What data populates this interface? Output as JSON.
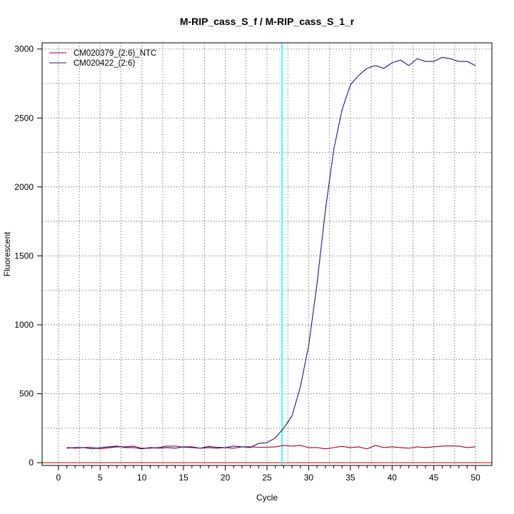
{
  "chart_data": {
    "type": "line",
    "title": "M-RIP_cass_S_f / M-RIP_cass_S_1_r",
    "xlabel": "Cycle",
    "ylabel": "Fluorescent",
    "xlim": [
      -1.96,
      51.96
    ],
    "ylim": [
      -20,
      3045
    ],
    "x_ticks": [
      0,
      5,
      10,
      15,
      20,
      25,
      30,
      35,
      40,
      45,
      50
    ],
    "x_tick_labels": [
      "0",
      "5",
      "10",
      "15",
      "20",
      "25",
      "30",
      "35",
      "40",
      "45",
      "50"
    ],
    "y_ticks": [
      0,
      500,
      1000,
      1500,
      2000,
      2500,
      3000
    ],
    "y_tick_labels": [
      "0",
      "500",
      "1000",
      "1500",
      "2000",
      "2500",
      "3000"
    ],
    "x_minor_ticks": [
      1,
      2,
      3,
      4,
      6,
      7,
      8,
      9,
      11,
      12,
      13,
      14,
      16,
      17,
      18,
      19,
      21,
      22,
      23,
      24,
      26,
      27,
      28,
      29,
      31,
      32,
      33,
      34,
      36,
      37,
      38,
      39,
      41,
      42,
      43,
      44,
      46,
      47,
      48,
      49
    ],
    "x_grid": [
      2.5,
      7.5,
      12.5,
      17.5,
      22.5,
      27.5,
      32.5,
      37.5,
      42.5,
      47.5
    ],
    "y_grid": [
      250,
      500,
      750,
      1000,
      1250,
      1500,
      1750,
      2000,
      2250,
      2500,
      2750,
      3000
    ],
    "grid": true,
    "grid_style": "dotted",
    "threshold_cycle": 26.8,
    "threshold_color": "#00ffff",
    "baseline_y": 0,
    "baseline_color": "#cc0000",
    "legend_position": "top-left",
    "x": [
      1,
      2,
      3,
      4,
      5,
      6,
      7,
      8,
      9,
      10,
      11,
      12,
      13,
      14,
      15,
      16,
      17,
      18,
      19,
      20,
      21,
      22,
      23,
      24,
      25,
      26,
      27,
      28,
      29,
      30,
      31,
      32,
      33,
      34,
      35,
      36,
      37,
      38,
      39,
      40,
      41,
      42,
      43,
      44,
      45,
      46,
      47,
      48,
      49,
      50
    ],
    "series": [
      {
        "name": "CM020379_(2:6)_NTC",
        "color": "#a50021",
        "values": [
          110,
          105,
          110,
          112,
          100,
          108,
          115,
          115,
          120,
          105,
          105,
          110,
          120,
          120,
          112,
          110,
          105,
          118,
          112,
          110,
          105,
          115,
          115,
          112,
          112,
          115,
          125,
          120,
          125,
          110,
          110,
          100,
          110,
          118,
          110,
          115,
          100,
          125,
          110,
          115,
          110,
          105,
          115,
          110,
          115,
          120,
          122,
          120,
          110,
          115
        ]
      },
      {
        "name": "CM020422_(2:6)",
        "color": "#1a1a7a",
        "values": [
          105,
          110,
          110,
          100,
          110,
          115,
          120,
          110,
          110,
          100,
          110,
          105,
          110,
          105,
          115,
          115,
          105,
          110,
          105,
          110,
          120,
          115,
          110,
          140,
          145,
          180,
          250,
          340,
          550,
          850,
          1300,
          1830,
          2270,
          2560,
          2740,
          2810,
          2860,
          2880,
          2860,
          2900,
          2920,
          2880,
          2930,
          2910,
          2910,
          2940,
          2930,
          2910,
          2910,
          2880
        ]
      }
    ]
  }
}
